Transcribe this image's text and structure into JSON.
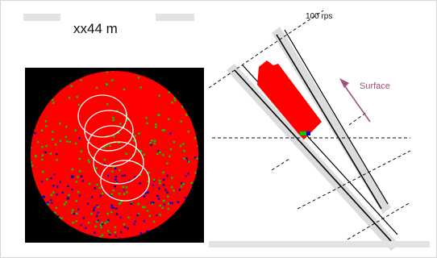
{
  "header": {
    "title": "xx44 m"
  },
  "diagram": {
    "rps_label": "100 rps",
    "surface_label": "Surface",
    "colors": {
      "surface_arrow": "#a0527a",
      "fill_red": "#ff0000",
      "fill_green": "#00cc00",
      "fill_blue": "#0000cc"
    }
  },
  "icons": {
    "surface_arrow": "arrow-up-left-icon"
  }
}
